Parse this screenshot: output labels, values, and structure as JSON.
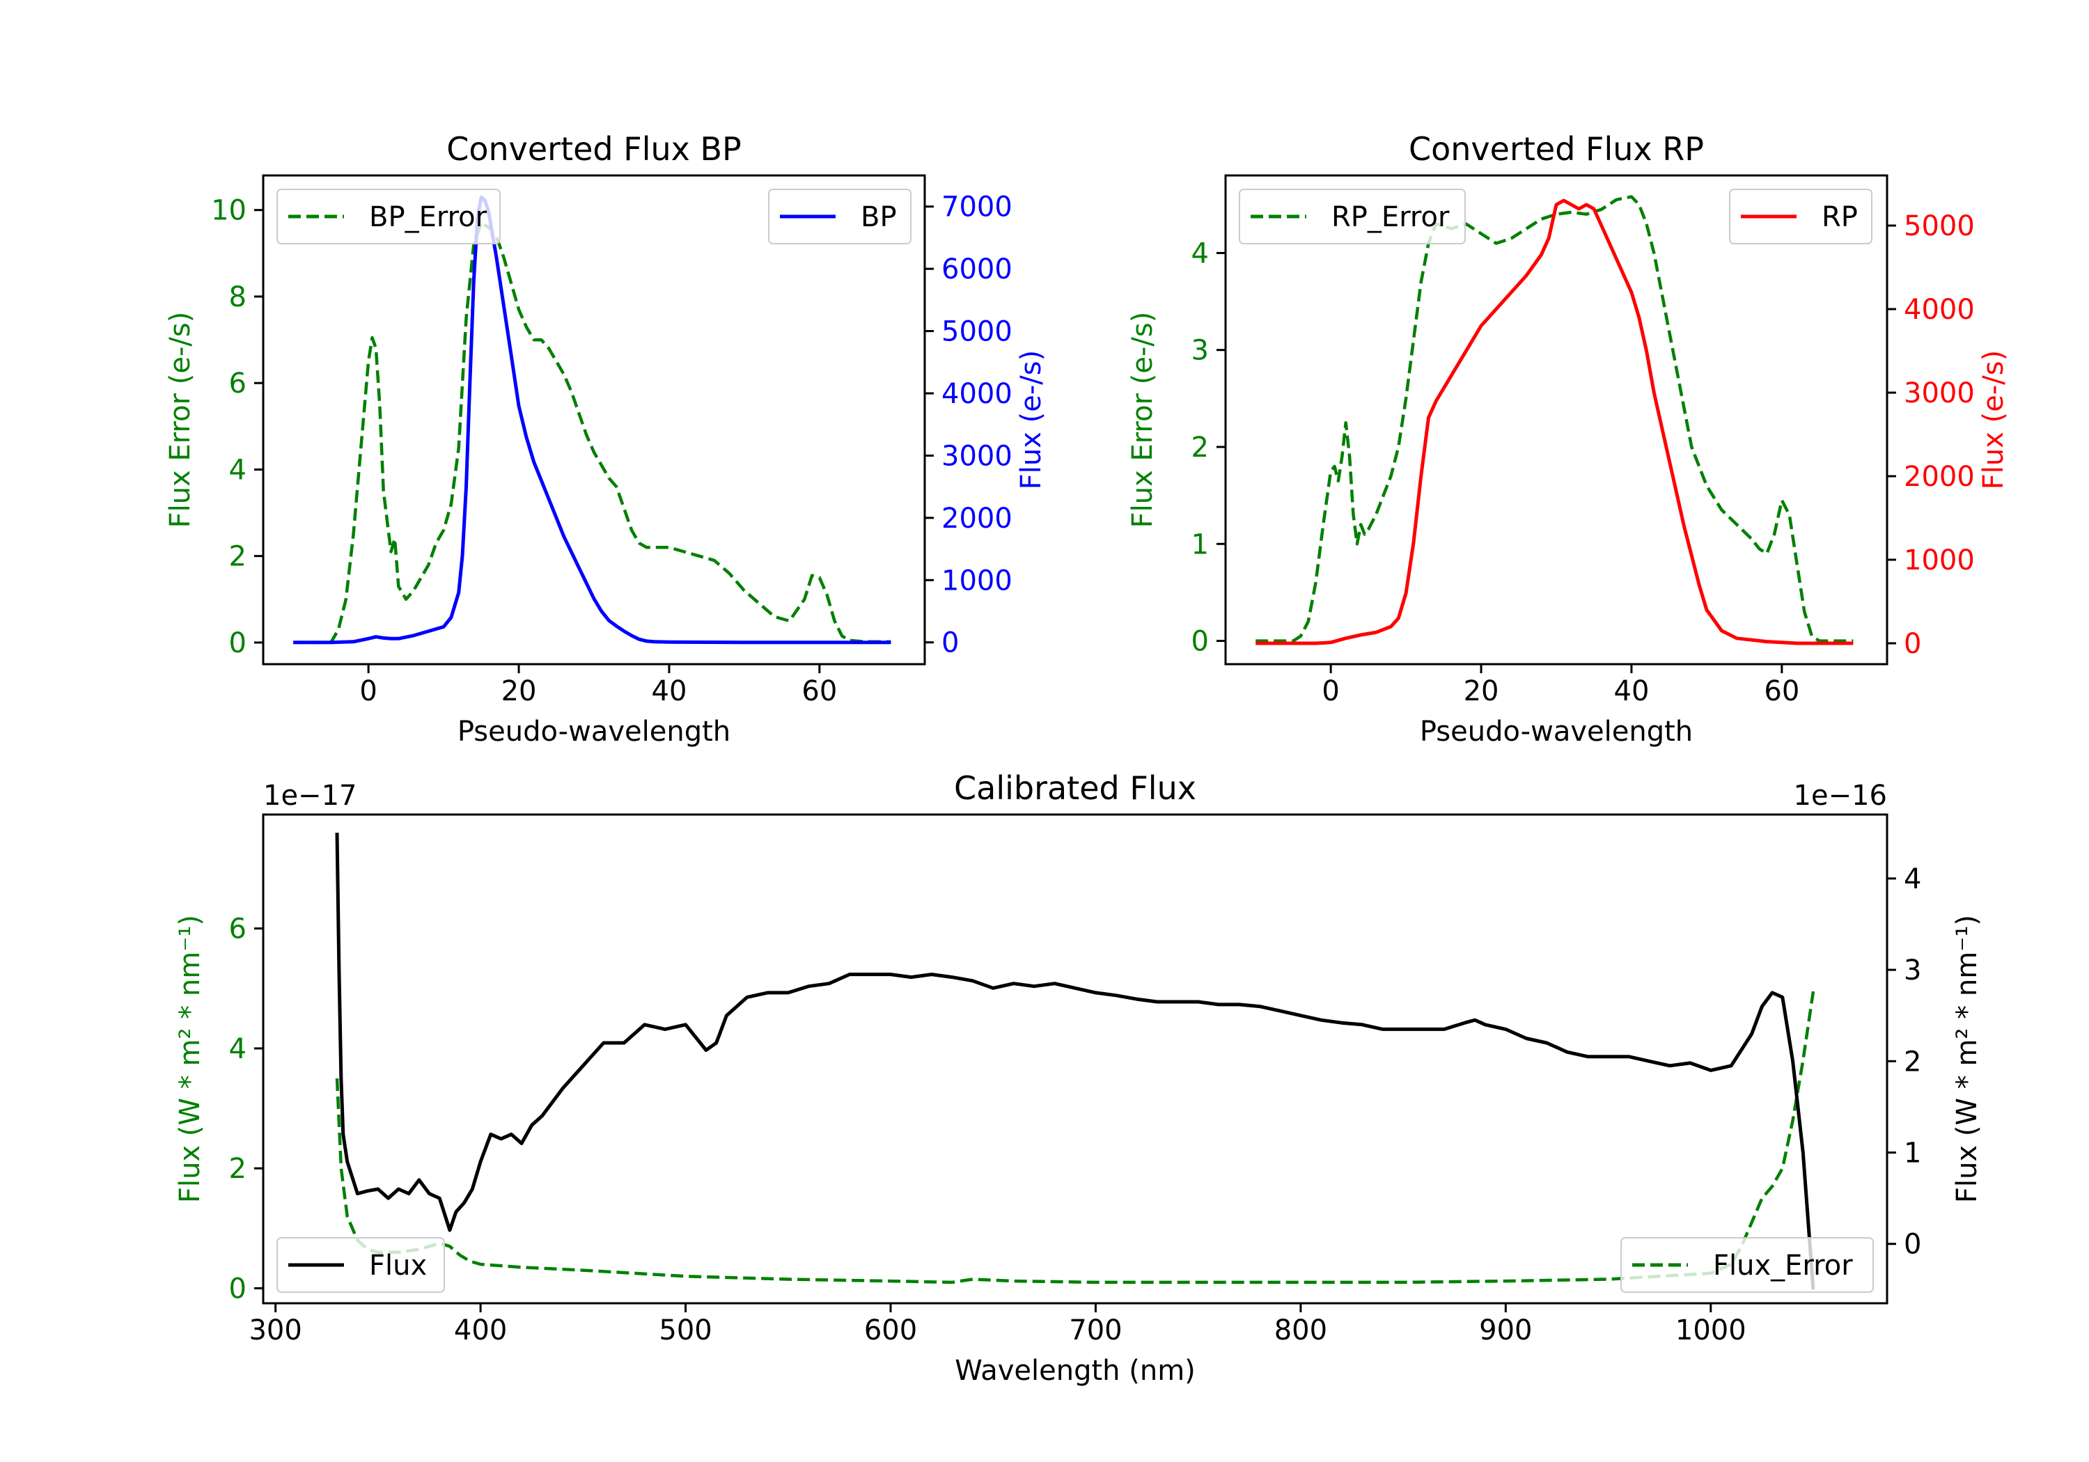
{
  "chart_data": [
    {
      "type": "line",
      "title": "Converted Flux BP",
      "xlabel": "Pseudo-wavelength",
      "ylabel_left": "Flux Error (e-/s)",
      "ylabel_right": "Flux (e-/s)",
      "xlim": [
        -14,
        74
      ],
      "ylim_left": [
        -0.5,
        10.8
      ],
      "ylim_right": [
        -350,
        7500
      ],
      "xticks": [
        "0",
        "20",
        "40",
        "60"
      ],
      "yticks_left": [
        "0",
        "2",
        "4",
        "6",
        "8",
        "10"
      ],
      "yticks_right": [
        "0",
        "1000",
        "2000",
        "3000",
        "4000",
        "5000",
        "6000",
        "7000"
      ],
      "legend_left": "BP_Error",
      "legend_right": "BP",
      "colors": {
        "error": "#008000",
        "flux": "#0000ff",
        "left_axis": "#008000",
        "right_axis": "#0000ff"
      },
      "series": [
        {
          "name": "BP_Error",
          "axis": "left",
          "style": "dashed",
          "x": [
            -10,
            -5,
            -4,
            -3,
            -2,
            -1,
            0,
            0.5,
            1,
            1.5,
            2,
            3,
            3.5,
            4,
            5,
            6,
            7,
            8,
            9,
            10,
            11,
            12,
            13,
            14,
            15,
            16,
            17,
            18,
            19,
            20,
            21,
            22,
            23,
            24,
            25,
            26,
            27,
            28,
            29,
            30,
            31,
            32,
            33,
            34,
            35,
            36,
            37,
            38,
            39,
            40,
            42,
            44,
            46,
            48,
            50,
            52,
            54,
            56,
            58,
            59,
            60,
            61,
            62,
            63,
            64,
            66,
            68,
            69.5
          ],
          "y": [
            0,
            0,
            0.3,
            1,
            2.5,
            4.5,
            6.5,
            7.05,
            6.8,
            5.5,
            3.5,
            2.1,
            2.4,
            1.3,
            1.0,
            1.2,
            1.5,
            1.8,
            2.3,
            2.6,
            3.2,
            4.5,
            7.5,
            9.2,
            9.7,
            9.6,
            9.4,
            8.9,
            8.3,
            7.7,
            7.3,
            7.0,
            7.0,
            6.8,
            6.5,
            6.2,
            5.8,
            5.3,
            4.8,
            4.4,
            4.1,
            3.8,
            3.6,
            3.1,
            2.6,
            2.3,
            2.2,
            2.2,
            2.2,
            2.2,
            2.1,
            2.0,
            1.9,
            1.6,
            1.2,
            0.9,
            0.6,
            0.5,
            1.0,
            1.55,
            1.5,
            1.1,
            0.5,
            0.15,
            0.05,
            0.02,
            0.02,
            0.02
          ]
        },
        {
          "name": "BP",
          "axis": "right",
          "style": "solid",
          "x": [
            -10,
            -5,
            -2,
            0,
            1,
            2,
            3,
            4,
            6,
            8,
            10,
            11,
            12,
            12.5,
            13,
            13.5,
            14,
            14.5,
            15,
            15.5,
            16,
            17,
            18,
            19,
            20,
            21,
            22,
            23,
            24,
            25,
            26,
            27,
            28,
            29,
            30,
            31,
            32,
            33,
            34,
            35,
            36,
            37,
            38,
            40,
            45,
            50,
            55,
            60,
            65,
            69.5
          ],
          "y": [
            0,
            0,
            10,
            60,
            90,
            70,
            60,
            60,
            110,
            180,
            250,
            400,
            800,
            1400,
            2500,
            4200,
            5800,
            6800,
            7150,
            7100,
            6900,
            6200,
            5400,
            4600,
            3800,
            3300,
            2900,
            2600,
            2300,
            2000,
            1700,
            1450,
            1200,
            950,
            700,
            500,
            350,
            260,
            180,
            110,
            50,
            20,
            10,
            5,
            2,
            0,
            0,
            0,
            0,
            0
          ]
        }
      ]
    },
    {
      "type": "line",
      "title": "Converted Flux RP",
      "xlabel": "Pseudo-wavelength",
      "ylabel_left": "Flux Error (e-/s)",
      "ylabel_right": "Flux (e-/s)",
      "xlim": [
        -14,
        74
      ],
      "ylim_left": [
        -0.24,
        4.8
      ],
      "ylim_right": [
        -250,
        5600
      ],
      "xticks": [
        "0",
        "20",
        "40",
        "60"
      ],
      "yticks_left": [
        "0",
        "1",
        "2",
        "3",
        "4"
      ],
      "yticks_right": [
        "0",
        "1000",
        "2000",
        "3000",
        "4000",
        "5000"
      ],
      "legend_left": "RP_Error",
      "legend_right": "RP",
      "colors": {
        "error": "#008000",
        "flux": "#ff0000",
        "left_axis": "#008000",
        "right_axis": "#ff0000"
      },
      "series": [
        {
          "name": "RP_Error",
          "axis": "left",
          "style": "dashed",
          "x": [
            -10,
            -5,
            -4,
            -3,
            -2,
            -1,
            0,
            0.5,
            1,
            1.5,
            2,
            2.5,
            3,
            3.5,
            4,
            4.5,
            5,
            6,
            7,
            8,
            9,
            10,
            11,
            12,
            13,
            14,
            15,
            16,
            18,
            20,
            22,
            24,
            26,
            28,
            30,
            32,
            34,
            36,
            38,
            40,
            41,
            42,
            43,
            44,
            45,
            46,
            47,
            48,
            50,
            52,
            54,
            56,
            57,
            58,
            59,
            60,
            61,
            62,
            63,
            64,
            65,
            67,
            69.5
          ],
          "y": [
            0,
            0,
            0.05,
            0.2,
            0.6,
            1.2,
            1.75,
            1.8,
            1.65,
            1.9,
            2.25,
            1.9,
            1.3,
            1.0,
            1.2,
            1.1,
            1.15,
            1.3,
            1.5,
            1.7,
            2.0,
            2.5,
            3.1,
            3.7,
            4.1,
            4.3,
            4.28,
            4.25,
            4.3,
            4.2,
            4.1,
            4.15,
            4.25,
            4.35,
            4.4,
            4.42,
            4.4,
            4.45,
            4.55,
            4.58,
            4.5,
            4.3,
            4.0,
            3.6,
            3.2,
            2.8,
            2.4,
            2.0,
            1.6,
            1.35,
            1.2,
            1.05,
            0.95,
            0.9,
            1.1,
            1.45,
            1.3,
            0.8,
            0.3,
            0.05,
            0,
            0,
            0
          ]
        },
        {
          "name": "RP",
          "axis": "right",
          "style": "solid",
          "x": [
            -10,
            -5,
            -2,
            0,
            2,
            4,
            6,
            8,
            9,
            10,
            11,
            12,
            13,
            14,
            15,
            16,
            18,
            20,
            22,
            24,
            26,
            28,
            29,
            30,
            31,
            32,
            33,
            34,
            35,
            36,
            37,
            38,
            39,
            40,
            41,
            42,
            43,
            44,
            45,
            46,
            47,
            48,
            49,
            50,
            52,
            54,
            56,
            58,
            60,
            62,
            65,
            69.5
          ],
          "y": [
            0,
            0,
            0,
            10,
            60,
            100,
            130,
            200,
            300,
            600,
            1200,
            2000,
            2700,
            2900,
            3050,
            3200,
            3500,
            3800,
            4000,
            4200,
            4400,
            4650,
            4850,
            5250,
            5300,
            5250,
            5200,
            5250,
            5200,
            5000,
            4800,
            4600,
            4400,
            4200,
            3900,
            3500,
            3000,
            2600,
            2200,
            1800,
            1400,
            1050,
            700,
            400,
            150,
            60,
            40,
            20,
            10,
            0,
            0,
            0
          ]
        }
      ]
    },
    {
      "type": "line",
      "title": "Calibrated Flux",
      "xlabel": "Wavelength (nm)",
      "ylabel_left": "Flux (W * m² * nm⁻¹)",
      "ylabel_right": "Flux (W * m² * nm⁻¹)",
      "offset_left": "1e−17",
      "offset_right": "1e−16",
      "xlim": [
        294,
        1086
      ],
      "ylim_left": [
        -0.25,
        7.9
      ],
      "ylim_right": [
        -0.65,
        4.7
      ],
      "xticks": [
        "300",
        "400",
        "500",
        "600",
        "700",
        "800",
        "900",
        "1000"
      ],
      "yticks_left": [
        "0",
        "2",
        "4",
        "6"
      ],
      "yticks_right": [
        "0",
        "1",
        "2",
        "3",
        "4"
      ],
      "legend_left": "Flux",
      "legend_right": "Flux_Error",
      "colors": {
        "error": "#008000",
        "flux": "#000000",
        "left_axis": "#008000",
        "right_axis": "#000000"
      },
      "series": [
        {
          "name": "Flux_Error",
          "axis": "left",
          "style": "dashed",
          "x": [
            330,
            332,
            335,
            340,
            345,
            350,
            360,
            370,
            380,
            385,
            390,
            395,
            400,
            420,
            450,
            500,
            550,
            600,
            630,
            640,
            660,
            700,
            750,
            800,
            850,
            900,
            950,
            1000,
            1010,
            1015,
            1020,
            1025,
            1030,
            1035,
            1040,
            1045,
            1050
          ],
          "y": [
            3.5,
            2.0,
            1.2,
            0.8,
            0.65,
            0.6,
            0.6,
            0.65,
            0.75,
            0.7,
            0.55,
            0.45,
            0.4,
            0.35,
            0.3,
            0.2,
            0.15,
            0.12,
            0.1,
            0.15,
            0.12,
            0.1,
            0.1,
            0.1,
            0.1,
            0.12,
            0.15,
            0.25,
            0.4,
            0.7,
            1.1,
            1.5,
            1.7,
            2.0,
            2.8,
            3.8,
            4.95
          ]
        },
        {
          "name": "Flux",
          "axis": "right",
          "style": "solid",
          "x": [
            330,
            331,
            332,
            333,
            335,
            340,
            345,
            350,
            355,
            360,
            365,
            370,
            375,
            380,
            385,
            388,
            392,
            396,
            400,
            405,
            410,
            415,
            420,
            425,
            430,
            440,
            450,
            460,
            470,
            480,
            490,
            500,
            510,
            515,
            520,
            530,
            540,
            550,
            560,
            570,
            580,
            590,
            600,
            610,
            620,
            630,
            640,
            650,
            660,
            670,
            680,
            690,
            700,
            710,
            720,
            730,
            740,
            750,
            760,
            770,
            780,
            790,
            800,
            810,
            820,
            830,
            840,
            850,
            860,
            870,
            880,
            885,
            890,
            900,
            910,
            920,
            930,
            940,
            950,
            960,
            970,
            980,
            990,
            1000,
            1010,
            1020,
            1025,
            1030,
            1035,
            1040,
            1045,
            1050
          ],
          "y": [
            4.5,
            3.0,
            1.8,
            1.2,
            0.9,
            0.55,
            0.58,
            0.6,
            0.5,
            0.6,
            0.55,
            0.7,
            0.55,
            0.5,
            0.15,
            0.35,
            0.45,
            0.6,
            0.9,
            1.2,
            1.15,
            1.2,
            1.1,
            1.3,
            1.4,
            1.7,
            1.95,
            2.2,
            2.2,
            2.4,
            2.35,
            2.4,
            2.12,
            2.2,
            2.5,
            2.7,
            2.75,
            2.75,
            2.82,
            2.85,
            2.95,
            2.95,
            2.95,
            2.92,
            2.95,
            2.92,
            2.88,
            2.8,
            2.85,
            2.82,
            2.85,
            2.8,
            2.75,
            2.72,
            2.68,
            2.65,
            2.65,
            2.65,
            2.62,
            2.62,
            2.6,
            2.55,
            2.5,
            2.45,
            2.42,
            2.4,
            2.35,
            2.35,
            2.35,
            2.35,
            2.42,
            2.45,
            2.4,
            2.35,
            2.25,
            2.2,
            2.1,
            2.05,
            2.05,
            2.05,
            2.0,
            1.95,
            1.98,
            1.9,
            1.95,
            2.3,
            2.6,
            2.75,
            2.7,
            2.0,
            1.0,
            -0.5
          ]
        }
      ]
    }
  ]
}
